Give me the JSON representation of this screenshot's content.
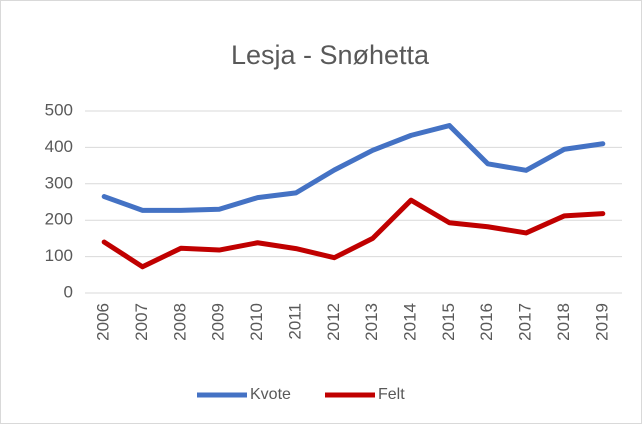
{
  "chart_data": {
    "type": "line",
    "title": "Lesja - Snøhetta",
    "categories": [
      "2006",
      "2007",
      "2008",
      "2009",
      "2010",
      "2011",
      "2012",
      "2013",
      "2014",
      "2015",
      "2016",
      "2017",
      "2018",
      "2019"
    ],
    "series": [
      {
        "name": "Kvote",
        "color": "#4472c4",
        "values": [
          265,
          227,
          227,
          230,
          262,
          275,
          338,
          392,
          433,
          460,
          355,
          337,
          395,
          410
        ]
      },
      {
        "name": "Felt",
        "color": "#c00000",
        "values": [
          140,
          72,
          123,
          118,
          138,
          122,
          97,
          150,
          255,
          193,
          182,
          165,
          212,
          218
        ]
      }
    ],
    "ylim": [
      0,
      500
    ],
    "yticks": [
      0,
      100,
      200,
      300,
      400,
      500
    ],
    "grid": true,
    "legend": "bottom"
  }
}
